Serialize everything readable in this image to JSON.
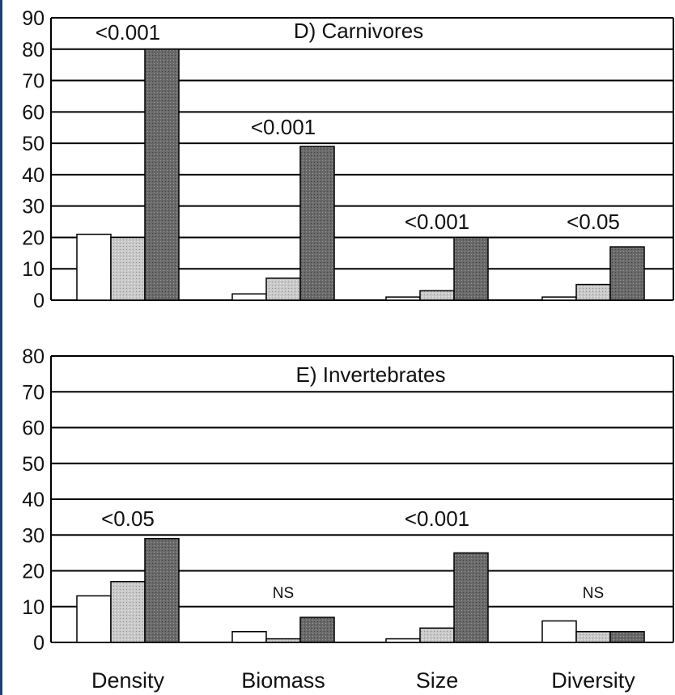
{
  "colors": {
    "page_edge": "#1f3f7a",
    "series": [
      "#ffffff",
      "#c9c9c9",
      "#6a6a6a"
    ],
    "grid": "#000000"
  },
  "chart_data": [
    {
      "type": "bar",
      "title": "D) Carnivores",
      "categories": [
        "Density",
        "Biomass",
        "Size",
        "Diversity"
      ],
      "ylim": [
        0,
        90
      ],
      "yticks": [
        "0",
        "10",
        "20",
        "30",
        "40",
        "50",
        "60",
        "70",
        "80",
        "90"
      ],
      "grid": true,
      "series": [
        {
          "values": [
            21,
            2,
            1,
            1
          ]
        },
        {
          "values": [
            20,
            7,
            3,
            5
          ]
        },
        {
          "values": [
            80,
            49,
            20,
            17
          ]
        }
      ],
      "annotations": [
        "<0.001",
        "<0.001",
        "<0.001",
        "<0.05"
      ]
    },
    {
      "type": "bar",
      "title": "E) Invertebrates",
      "categories": [
        "Density",
        "Biomass",
        "Size",
        "Diversity"
      ],
      "ylim": [
        0,
        80
      ],
      "yticks": [
        "0",
        "10",
        "20",
        "30",
        "40",
        "50",
        "60",
        "70",
        "80"
      ],
      "grid": true,
      "series": [
        {
          "values": [
            13,
            3,
            1,
            6
          ]
        },
        {
          "values": [
            17,
            1,
            4,
            3
          ]
        },
        {
          "values": [
            29,
            7,
            25,
            3
          ]
        }
      ],
      "annotations": [
        "<0.05",
        "NS",
        "<0.001",
        "NS"
      ]
    }
  ]
}
